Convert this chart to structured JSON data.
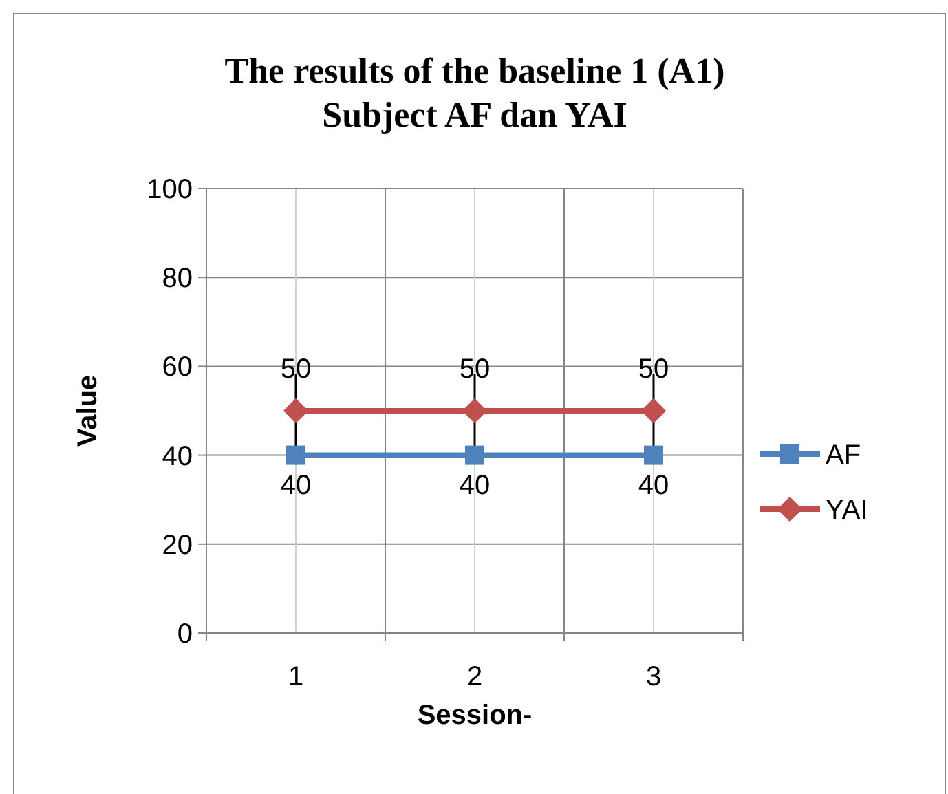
{
  "chart_data": {
    "type": "line",
    "title": "The results of the baseline 1 (A1)\nSubject AF dan YAI",
    "xlabel": "Session-",
    "ylabel": "Value",
    "categories": [
      "1",
      "2",
      "3"
    ],
    "series": [
      {
        "name": "AF",
        "color": "#4f81bd",
        "values": [
          40,
          40,
          40
        ],
        "marker": "square"
      },
      {
        "name": "YAI",
        "color": "#c0504d",
        "values": [
          50,
          50,
          50
        ],
        "marker": "diamond"
      }
    ],
    "ylim": [
      0,
      100
    ],
    "yticks": [
      0,
      20,
      40,
      60,
      80,
      100
    ],
    "grid": true,
    "legend": "right",
    "data_labels": true
  }
}
